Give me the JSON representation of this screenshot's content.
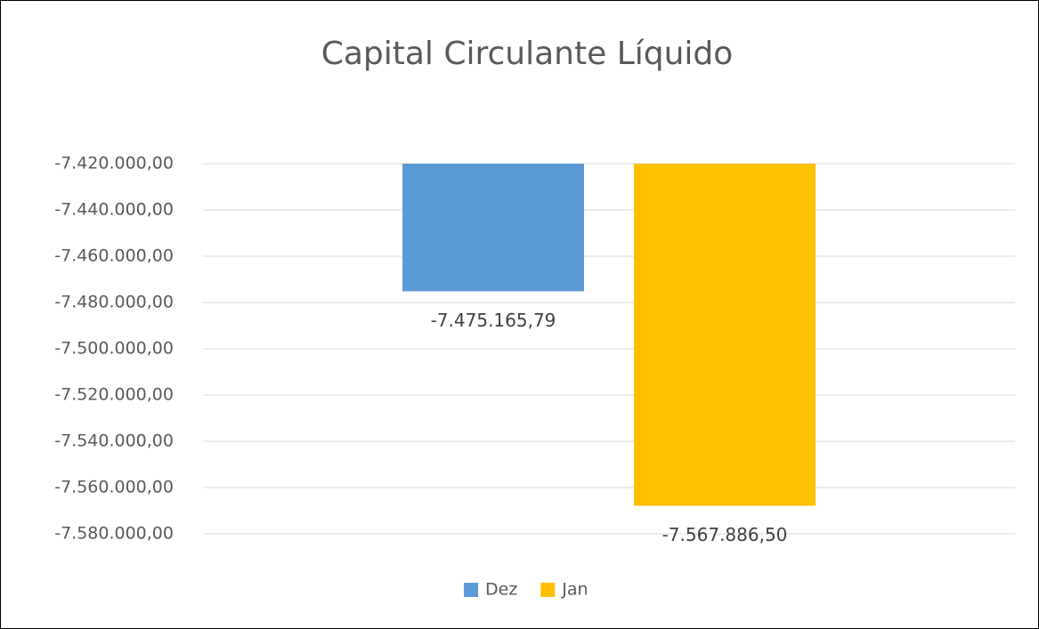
{
  "chart_data": {
    "type": "bar",
    "title": "Capital Circulante Líquido",
    "categories": [
      null
    ],
    "series": [
      {
        "name": "Dez",
        "color": "#5b9bd5",
        "values": [
          -7475165.79
        ],
        "value_labels": [
          "-7.475.165,79"
        ]
      },
      {
        "name": "Jan",
        "color": "#ffc000",
        "values": [
          -7567886.5
        ],
        "value_labels": [
          "-7.567.886,50"
        ]
      }
    ],
    "ylim": [
      -7580000,
      -7420000
    ],
    "yticks": [
      {
        "value": -7420000,
        "label": "-7.420.000,00"
      },
      {
        "value": -7440000,
        "label": "-7.440.000,00"
      },
      {
        "value": -7460000,
        "label": "-7.460.000,00"
      },
      {
        "value": -7480000,
        "label": "-7.480.000,00"
      },
      {
        "value": -7500000,
        "label": "-7.500.000,00"
      },
      {
        "value": -7520000,
        "label": "-7.520.000,00"
      },
      {
        "value": -7540000,
        "label": "-7.540.000,00"
      },
      {
        "value": -7560000,
        "label": "-7.560.000,00"
      },
      {
        "value": -7580000,
        "label": "-7.580.000,00"
      }
    ],
    "grid": true,
    "legend": "bottom"
  }
}
